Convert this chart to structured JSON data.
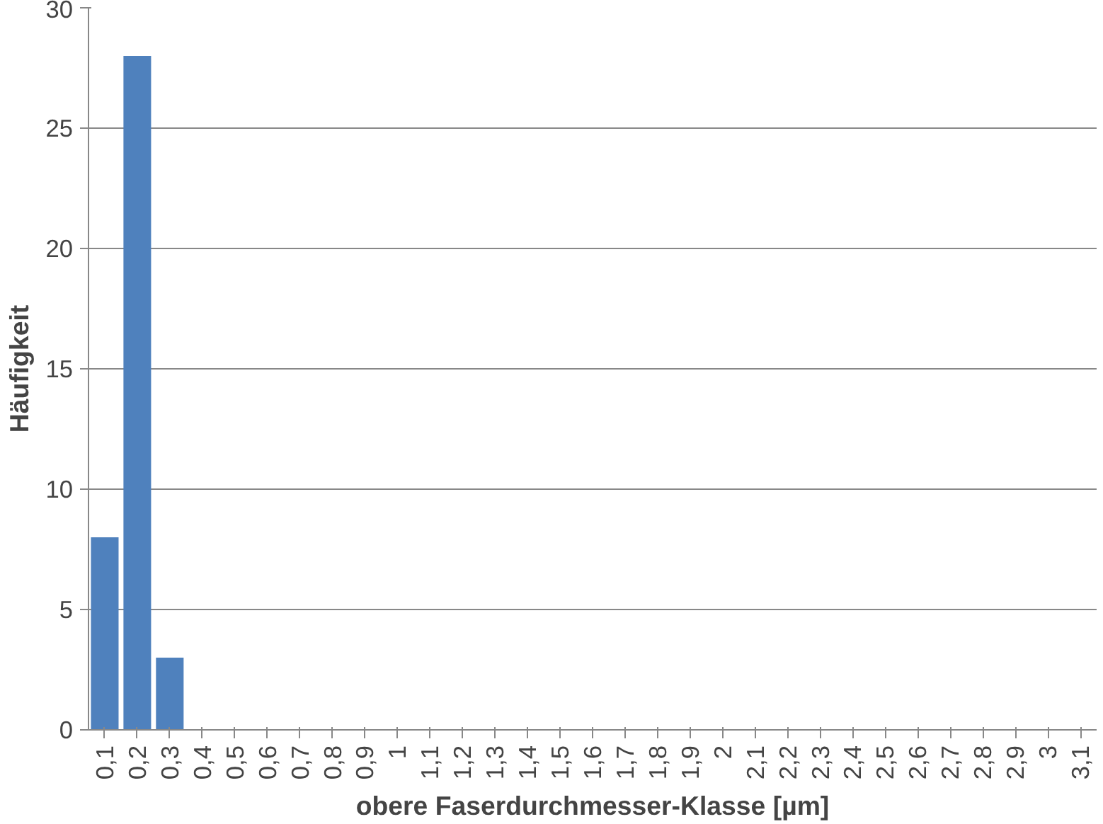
{
  "chart_data": {
    "type": "bar",
    "xlabel": "obere Faserdurchmesser-Klasse [µm]",
    "ylabel": "Häufigkeit",
    "categories": [
      "0,1",
      "0,2",
      "0,3",
      "0,4",
      "0,5",
      "0,6",
      "0,7",
      "0,8",
      "0,9",
      "1",
      "1,1",
      "1,2",
      "1,3",
      "1,4",
      "1,5",
      "1,6",
      "1,7",
      "1,8",
      "1,9",
      "2",
      "2,1",
      "2,2",
      "2,3",
      "2,4",
      "2,5",
      "2,6",
      "2,7",
      "2,8",
      "2,9",
      "3",
      "3,1"
    ],
    "values": [
      8,
      28,
      3,
      0,
      0,
      0,
      0,
      0,
      0,
      0,
      0,
      0,
      0,
      0,
      0,
      0,
      0,
      0,
      0,
      0,
      0,
      0,
      0,
      0,
      0,
      0,
      0,
      0,
      0,
      0,
      0
    ],
    "color": "#4f81bd",
    "ylim": [
      0,
      30
    ],
    "yticks": [
      0,
      5,
      10,
      15,
      20,
      25,
      30
    ],
    "grid": "y"
  }
}
